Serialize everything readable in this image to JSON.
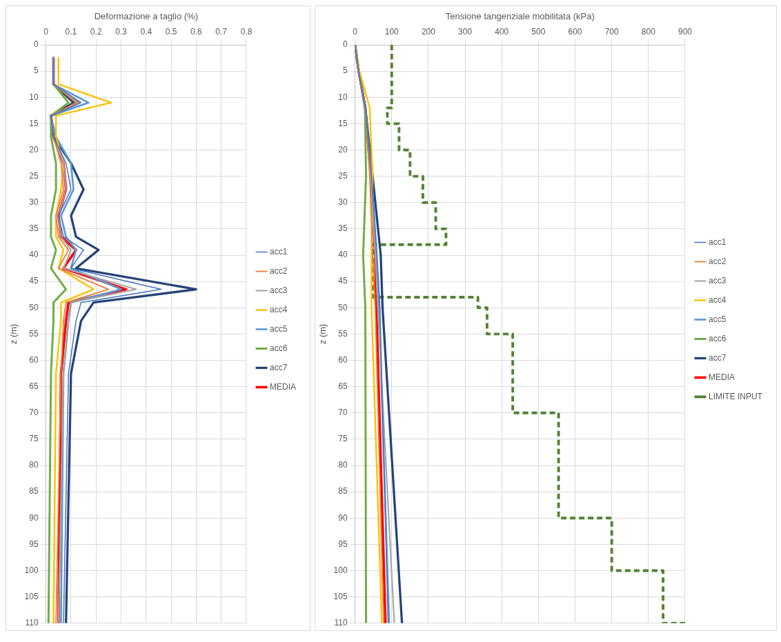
{
  "chart_data": [
    {
      "type": "line",
      "xlabel": "Deformazione a taglio (%)",
      "ylabel": "z (m)",
      "xlim": [
        0,
        0.8
      ],
      "xticks": [
        0,
        0.1,
        0.2,
        0.3,
        0.4,
        0.5,
        0.6,
        0.7,
        0.8
      ],
      "ylim": [
        110,
        0
      ],
      "yticks": [
        0,
        5,
        10,
        15,
        20,
        25,
        30,
        35,
        40,
        45,
        50,
        55,
        60,
        65,
        70,
        75,
        80,
        85,
        90,
        95,
        100,
        105,
        110
      ],
      "grid": true,
      "legend": "right",
      "marker": "none",
      "series": [
        {
          "name": "acc1",
          "color": "#4472c4",
          "x": [
            0.03,
            0.03,
            0.14,
            0.02,
            0.03,
            0.08,
            0.1,
            0.05,
            0.07,
            0.15,
            0.1,
            0.46,
            0.14,
            0.12,
            0.09,
            0.07
          ],
          "values": [
            2.5,
            7.5,
            11,
            13.5,
            17.5,
            22.5,
            27.5,
            32.5,
            36.5,
            39,
            42.5,
            46.5,
            49,
            52.5,
            62.5,
            110
          ]
        },
        {
          "name": "acc2",
          "color": "#ed7d31",
          "x": [
            0.03,
            0.03,
            0.12,
            0.02,
            0.03,
            0.06,
            0.07,
            0.04,
            0.05,
            0.09,
            0.05,
            0.25,
            0.08,
            0.07,
            0.06,
            0.04
          ],
          "values": [
            2.5,
            7.5,
            11,
            13.5,
            17.5,
            22.5,
            27.5,
            32.5,
            36.5,
            39,
            42.5,
            46.5,
            49,
            52.5,
            62.5,
            110
          ]
        },
        {
          "name": "acc3",
          "color": "#a5a5a5",
          "x": [
            0.03,
            0.03,
            0.13,
            0.02,
            0.03,
            0.07,
            0.08,
            0.05,
            0.06,
            0.1,
            0.07,
            0.36,
            0.1,
            0.09,
            0.07,
            0.05
          ],
          "values": [
            2.5,
            7.5,
            11,
            13.5,
            17.5,
            22.5,
            27.5,
            32.5,
            36.5,
            39,
            42.5,
            46.5,
            49,
            52.5,
            62.5,
            110
          ]
        },
        {
          "name": "acc4",
          "color": "#ffc000",
          "x": [
            0.05,
            0.05,
            0.26,
            0.04,
            0.04,
            0.07,
            0.06,
            0.04,
            0.04,
            0.07,
            0.05,
            0.19,
            0.06,
            0.06,
            0.04,
            0.03
          ],
          "values": [
            2.5,
            7.5,
            11,
            13.5,
            17.5,
            22.5,
            27.5,
            32.5,
            36.5,
            39,
            42.5,
            46.5,
            49,
            52.5,
            62.5,
            110
          ]
        },
        {
          "name": "acc5",
          "color": "#5b9bd5",
          "x": [
            0.03,
            0.03,
            0.17,
            0.02,
            0.04,
            0.1,
            0.11,
            0.06,
            0.08,
            0.12,
            0.1,
            0.3,
            0.1,
            0.09,
            0.07,
            0.06
          ],
          "values": [
            2.5,
            7.5,
            11,
            13.5,
            17.5,
            22.5,
            27.5,
            32.5,
            36.5,
            39,
            42.5,
            46.5,
            49,
            52.5,
            62.5,
            110
          ]
        },
        {
          "name": "acc6",
          "color": "#70ad47",
          "x": [
            0.03,
            0.03,
            0.09,
            0.02,
            0.02,
            0.04,
            0.04,
            0.02,
            0.02,
            0.04,
            0.02,
            0.08,
            0.03,
            0.03,
            0.02,
            0.01
          ],
          "values": [
            2.5,
            7.5,
            11,
            13.5,
            17.5,
            22.5,
            27.5,
            32.5,
            36.5,
            39,
            42.5,
            46.5,
            49,
            52.5,
            62.5,
            110
          ]
        },
        {
          "name": "acc7",
          "color": "#264478",
          "x": [
            0.03,
            0.03,
            0.11,
            0.02,
            0.03,
            0.1,
            0.15,
            0.1,
            0.12,
            0.21,
            0.12,
            0.6,
            0.19,
            0.14,
            0.1,
            0.08
          ],
          "values": [
            2.5,
            7.5,
            11,
            13.5,
            17.5,
            22.5,
            27.5,
            32.5,
            36.5,
            39,
            42.5,
            46.5,
            49,
            52.5,
            62.5,
            110
          ]
        },
        {
          "name": "MEDIA",
          "color": "#ff0000",
          "x": [
            0.03,
            0.03,
            0.13,
            0.02,
            0.03,
            0.07,
            0.08,
            0.05,
            0.06,
            0.12,
            0.07,
            0.32,
            0.09,
            0.08,
            0.06,
            0.05
          ],
          "values": [
            2.5,
            7.5,
            11,
            13.5,
            17.5,
            22.5,
            27.5,
            32.5,
            36.5,
            39,
            42.5,
            46.5,
            49,
            52.5,
            62.5,
            110
          ]
        }
      ]
    },
    {
      "type": "line",
      "xlabel": "Tensione tangenziale mobilitata (kPa)",
      "ylabel": "z (m)",
      "xlim": [
        0,
        900
      ],
      "xticks": [
        0,
        100,
        200,
        300,
        400,
        500,
        600,
        700,
        800,
        900
      ],
      "ylim": [
        110,
        0
      ],
      "yticks": [
        0,
        5,
        10,
        15,
        20,
        25,
        30,
        35,
        40,
        45,
        50,
        55,
        60,
        65,
        70,
        75,
        80,
        85,
        90,
        95,
        100,
        105,
        110
      ],
      "grid": true,
      "legend": "right",
      "marker": "none",
      "series": [
        {
          "name": "acc1",
          "color": "#4472c4",
          "x": [
            0,
            10,
            28,
            45,
            60,
            68,
            90
          ],
          "values": [
            0,
            5,
            12,
            25,
            40,
            50,
            110
          ]
        },
        {
          "name": "acc2",
          "color": "#ed7d31",
          "x": [
            0,
            10,
            28,
            40,
            48,
            55,
            78
          ],
          "values": [
            0,
            5,
            12,
            25,
            40,
            50,
            110
          ]
        },
        {
          "name": "acc3",
          "color": "#a5a5a5",
          "x": [
            0,
            10,
            28,
            43,
            55,
            62,
            107
          ],
          "values": [
            0,
            5,
            12,
            25,
            40,
            50,
            110
          ]
        },
        {
          "name": "acc4",
          "color": "#ffc000",
          "x": [
            0,
            12,
            40,
            48,
            45,
            45,
            73
          ],
          "values": [
            0,
            5,
            12,
            25,
            40,
            50,
            110
          ]
        },
        {
          "name": "acc5",
          "color": "#5b9bd5",
          "x": [
            0,
            10,
            28,
            45,
            58,
            65,
            93
          ],
          "values": [
            0,
            5,
            12,
            25,
            40,
            50,
            110
          ]
        },
        {
          "name": "acc6",
          "color": "#70ad47",
          "x": [
            0,
            10,
            27,
            30,
            22,
            28,
            30
          ],
          "values": [
            0,
            5,
            12,
            25,
            40,
            50,
            110
          ]
        },
        {
          "name": "acc7",
          "color": "#264478",
          "x": [
            0,
            10,
            28,
            48,
            70,
            75,
            128
          ],
          "values": [
            0,
            5,
            12,
            25,
            40,
            50,
            110
          ]
        },
        {
          "name": "MEDIA",
          "color": "#ff0000",
          "x": [
            0,
            10,
            28,
            43,
            55,
            58,
            83
          ],
          "values": [
            0,
            5,
            12,
            25,
            40,
            50,
            110
          ]
        },
        {
          "name": "LIMITE INPUT",
          "color": "#548235",
          "line_style": "dashed",
          "x": [
            100,
            100,
            88,
            88,
            120,
            120,
            150,
            150,
            185,
            185,
            220,
            220,
            248,
            248,
            48,
            48,
            335,
            335,
            360,
            360,
            430,
            430,
            555,
            555,
            700,
            700,
            840,
            840,
            900
          ],
          "values": [
            0,
            12,
            12,
            15,
            15,
            20,
            20,
            25,
            25,
            30,
            30,
            35,
            35,
            38,
            38,
            48,
            48,
            50,
            50,
            55,
            55,
            70,
            70,
            90,
            90,
            100,
            100,
            110,
            110
          ]
        }
      ]
    }
  ]
}
